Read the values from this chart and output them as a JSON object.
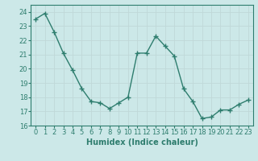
{
  "x": [
    0,
    1,
    2,
    3,
    4,
    5,
    6,
    7,
    8,
    9,
    10,
    11,
    12,
    13,
    14,
    15,
    16,
    17,
    18,
    19,
    20,
    21,
    22,
    23
  ],
  "y": [
    23.5,
    23.9,
    22.6,
    21.1,
    19.9,
    18.6,
    17.7,
    17.6,
    17.2,
    17.6,
    18.0,
    21.1,
    21.1,
    22.3,
    21.6,
    20.9,
    18.6,
    17.7,
    16.5,
    16.6,
    17.1,
    17.1,
    17.5,
    17.8
  ],
  "line_color": "#2e7d6e",
  "marker": "+",
  "marker_size": 4,
  "line_width": 1.0,
  "bg_color": "#cce8e8",
  "grid_color": "#c0d8d8",
  "title": "",
  "xlabel": "Humidex (Indice chaleur)",
  "ylabel": "",
  "xlim": [
    -0.5,
    23.5
  ],
  "ylim": [
    16,
    24.5
  ],
  "yticks": [
    16,
    17,
    18,
    19,
    20,
    21,
    22,
    23,
    24
  ],
  "xticks": [
    0,
    1,
    2,
    3,
    4,
    5,
    6,
    7,
    8,
    9,
    10,
    11,
    12,
    13,
    14,
    15,
    16,
    17,
    18,
    19,
    20,
    21,
    22,
    23
  ],
  "tick_label_fontsize": 6,
  "xlabel_fontsize": 7,
  "tick_color": "#2e7d6e",
  "spine_color": "#2e7d6e"
}
